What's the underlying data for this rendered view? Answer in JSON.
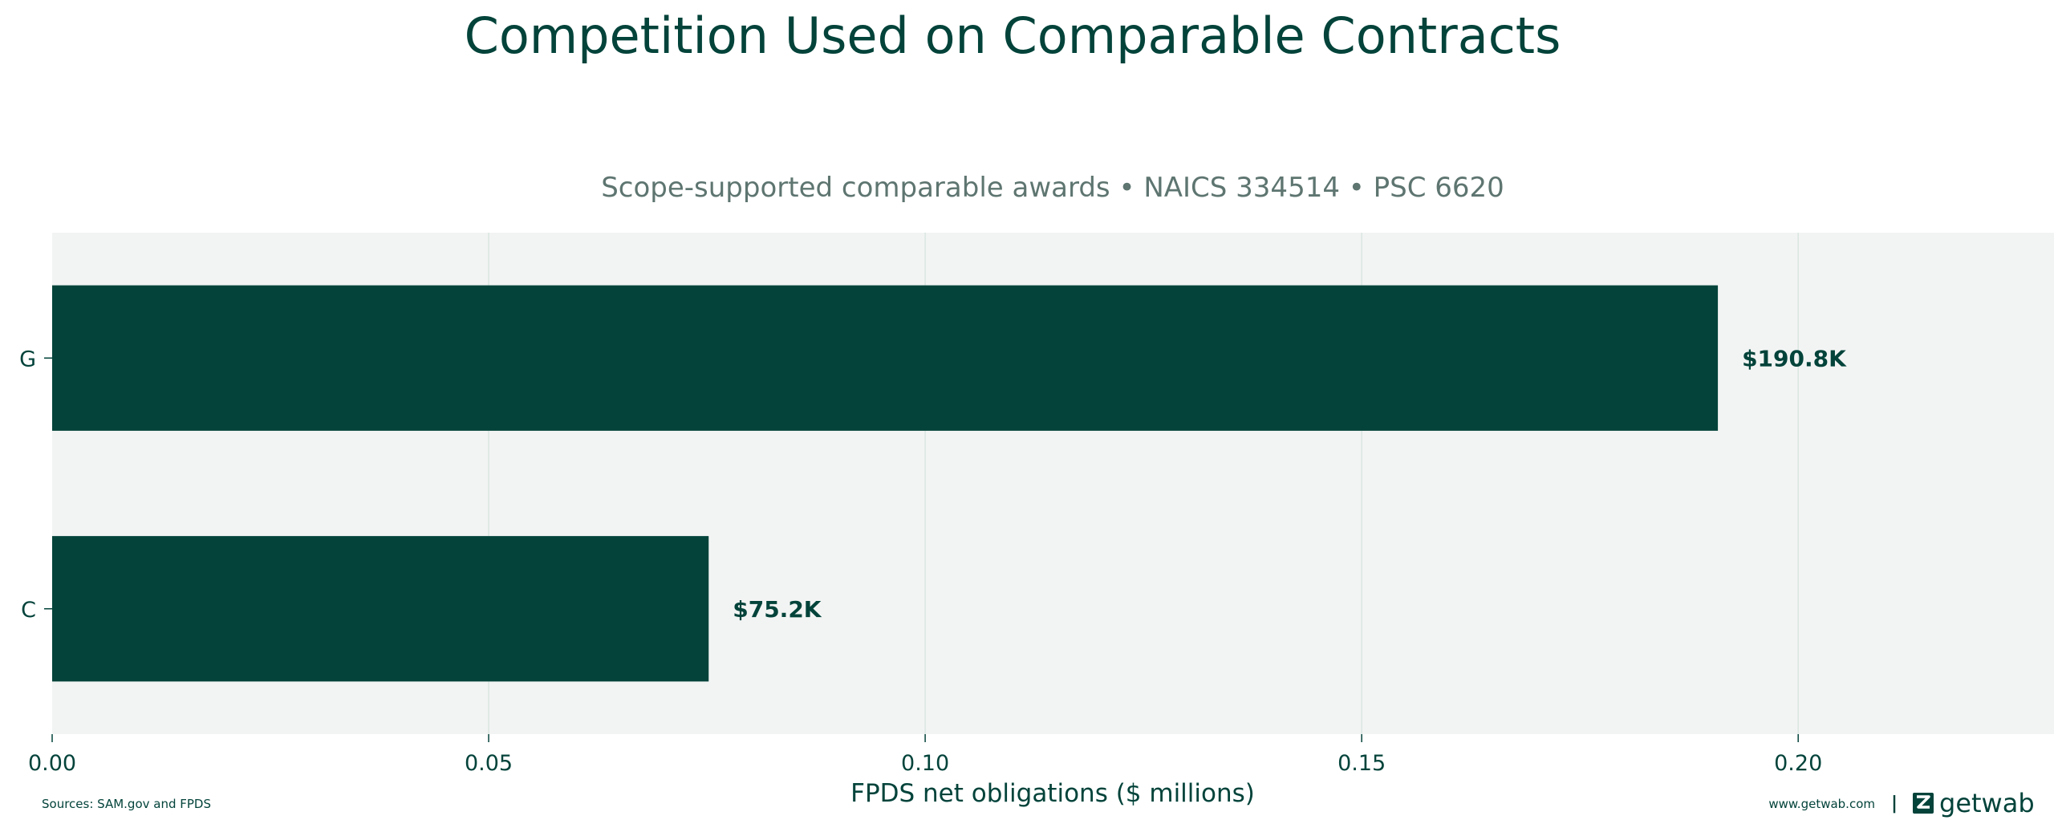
{
  "chart_data": {
    "type": "bar",
    "orientation": "horizontal",
    "title": "Competition Used on Comparable Contracts",
    "subtitle": "Scope-supported comparable awards • NAICS 334514 • PSC 6620",
    "categories": [
      "G",
      "C"
    ],
    "values": [
      0.1908,
      0.0752
    ],
    "value_labels": [
      "$190.8K",
      "$75.2K"
    ],
    "xlabel": "FPDS net obligations ($ millions)",
    "ylabel": "",
    "xlim": [
      0,
      0.2293
    ],
    "x_ticks": [
      0.0,
      0.05,
      0.1,
      0.15,
      0.2
    ],
    "x_tick_labels": [
      "0.00",
      "0.05",
      "0.10",
      "0.15",
      "0.20"
    ],
    "grid": "vertical",
    "bar_color": "#03433a",
    "plot_background": "#f2f4f3",
    "grid_color": "#d9e6e1"
  },
  "footer": {
    "source": "Sources: SAM.gov and FPDS",
    "website": "www.getwab.com",
    "separator": "|",
    "brand": "getwab",
    "brand_icon": "getwab-logo-icon"
  }
}
